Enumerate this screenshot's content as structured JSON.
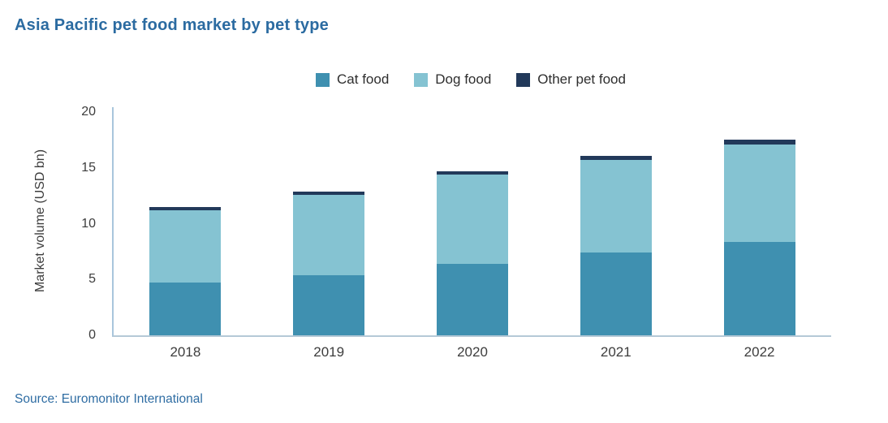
{
  "header": {
    "title": "Asia Pacific pet food market by pet type"
  },
  "footer": {
    "source": "Source: Euromonitor International"
  },
  "colors": {
    "title_text": "#2b6ba1",
    "source_text": "#2f6da3",
    "y_axis_line": "#a9c6dc",
    "x_axis_line": "#b5c9d7",
    "tick_text": "#3d3d3d",
    "legend_text": "#2e2e2e",
    "cat_food": "#3f90b0",
    "dog_food": "#85c3d2",
    "other_pet_food": "#22395a"
  },
  "chart_data": {
    "type": "bar",
    "stacked": true,
    "title": "Asia Pacific pet food market by pet type",
    "categories": [
      "2018",
      "2019",
      "2020",
      "2021",
      "2022"
    ],
    "series": [
      {
        "name": "Cat food",
        "color": "#3f90b0",
        "values": [
          4.7,
          5.4,
          6.4,
          7.4,
          8.4
        ]
      },
      {
        "name": "Dog food",
        "color": "#85c3d2",
        "values": [
          6.5,
          7.2,
          8.0,
          8.3,
          8.7
        ]
      },
      {
        "name": "Other pet food",
        "color": "#22395a",
        "values": [
          0.3,
          0.3,
          0.3,
          0.4,
          0.4
        ]
      }
    ],
    "totals": [
      11.5,
      12.9,
      14.7,
      16.1,
      17.5
    ],
    "xlabel": "",
    "ylabel": "Market volume (USD bn)",
    "ylim": [
      0,
      20
    ],
    "yticks": [
      0,
      5,
      10,
      15,
      20
    ],
    "grid": false,
    "legend_position": "top-center"
  }
}
